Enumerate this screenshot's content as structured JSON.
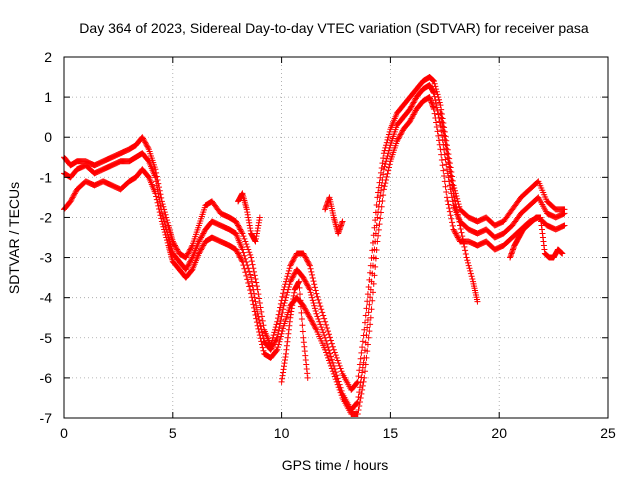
{
  "chart_data": {
    "type": "scatter",
    "title": "Day 364 of 2023, Sidereal Day-to-day VTEC variation (SDTVAR) for receiver pasa",
    "xlabel": "GPS time / hours",
    "ylabel": "SDTVAR / TECUs",
    "xlim": [
      0,
      25
    ],
    "ylim": [
      -7,
      2
    ],
    "xticks": [
      0,
      5,
      10,
      15,
      20,
      25
    ],
    "yticks": [
      -7,
      -6,
      -5,
      -4,
      -3,
      -2,
      -1,
      0,
      1,
      2
    ],
    "grid": true,
    "marker": "+",
    "color": "#ff0000",
    "series": [
      {
        "x": [
          0.0,
          0.3,
          0.6,
          1.0,
          1.4,
          1.8,
          2.2,
          2.6,
          3.0,
          3.3,
          3.6,
          3.9,
          4.2,
          4.5,
          4.8,
          5.0,
          5.3,
          5.6,
          5.9,
          6.2,
          6.5,
          6.8,
          7.2,
          7.6,
          7.9,
          8.2,
          8.6,
          8.9,
          9.2,
          9.5,
          9.8,
          10.1,
          10.4,
          10.7,
          11.0,
          11.3,
          11.6,
          12.0,
          12.4,
          12.8,
          13.2,
          13.5,
          13.8,
          14.1,
          14.4,
          14.7,
          15.0,
          15.3,
          15.6,
          15.9,
          16.2,
          16.5,
          16.8,
          17.0,
          17.3,
          17.6,
          17.9,
          18.2,
          18.6,
          19.0,
          19.4,
          19.8,
          20.2,
          20.6,
          21.0,
          21.4,
          21.8,
          22.2,
          22.6,
          23.0
        ],
        "y": [
          -0.5,
          -0.7,
          -0.6,
          -0.6,
          -0.7,
          -0.6,
          -0.5,
          -0.4,
          -0.3,
          -0.2,
          0.0,
          -0.3,
          -0.8,
          -1.6,
          -2.2,
          -2.6,
          -2.9,
          -3.0,
          -2.7,
          -2.2,
          -1.7,
          -1.6,
          -1.9,
          -2.0,
          -2.1,
          -2.4,
          -3.0,
          -3.8,
          -4.8,
          -5.2,
          -4.6,
          -3.8,
          -3.2,
          -2.9,
          -2.9,
          -3.2,
          -3.9,
          -4.6,
          -5.3,
          -5.9,
          -6.3,
          -6.1,
          -4.8,
          -3.2,
          -1.5,
          -0.4,
          0.2,
          0.6,
          0.8,
          1.0,
          1.2,
          1.4,
          1.5,
          1.4,
          0.8,
          -0.2,
          -1.2,
          -1.8,
          -2.0,
          -2.1,
          -2.0,
          -2.2,
          -2.1,
          -1.8,
          -1.5,
          -1.3,
          -1.1,
          -1.6,
          -1.8,
          -1.8
        ]
      },
      {
        "x": [
          0.0,
          0.3,
          0.6,
          1.0,
          1.4,
          1.8,
          2.2,
          2.6,
          3.0,
          3.3,
          3.6,
          3.9,
          4.2,
          4.5,
          4.8,
          5.0,
          5.3,
          5.6,
          5.9,
          6.2,
          6.5,
          6.8,
          7.2,
          7.6,
          7.9,
          8.2,
          8.6,
          8.9,
          9.2,
          9.5,
          9.8,
          10.1,
          10.4,
          10.7,
          11.0,
          11.3,
          11.6,
          12.0,
          12.4,
          12.8,
          13.2,
          13.5,
          13.8,
          14.1,
          14.4,
          14.7,
          15.0,
          15.3,
          15.6,
          15.9,
          16.2,
          16.5,
          16.8,
          17.0,
          17.3,
          17.6,
          17.9,
          18.2,
          18.6,
          19.0,
          19.4,
          19.8,
          20.2,
          20.6,
          21.0,
          21.4,
          21.8,
          22.2,
          22.6,
          23.0
        ],
        "y": [
          -0.9,
          -1.0,
          -0.8,
          -0.7,
          -0.9,
          -0.8,
          -0.7,
          -0.6,
          -0.6,
          -0.5,
          -0.4,
          -0.6,
          -1.0,
          -1.9,
          -2.5,
          -2.9,
          -3.1,
          -3.3,
          -3.0,
          -2.6,
          -2.3,
          -2.1,
          -2.2,
          -2.3,
          -2.4,
          -2.8,
          -3.5,
          -4.4,
          -5.1,
          -5.3,
          -5.0,
          -4.2,
          -3.6,
          -3.3,
          -3.5,
          -3.8,
          -4.4,
          -5.0,
          -5.7,
          -6.4,
          -6.8,
          -6.6,
          -5.5,
          -3.8,
          -2.0,
          -0.8,
          -0.2,
          0.3,
          0.5,
          0.7,
          1.0,
          1.2,
          1.3,
          1.1,
          0.3,
          -0.8,
          -1.7,
          -2.1,
          -2.3,
          -2.4,
          -2.3,
          -2.5,
          -2.4,
          -2.2,
          -1.9,
          -1.7,
          -1.5,
          -1.9,
          -2.0,
          -1.9
        ]
      },
      {
        "x": [
          0.0,
          0.3,
          0.6,
          1.0,
          1.4,
          1.8,
          2.2,
          2.6,
          3.0,
          3.3,
          3.6,
          3.9,
          4.2,
          4.5,
          4.8,
          5.0,
          5.3,
          5.6,
          5.9,
          6.2,
          6.5,
          6.8,
          7.2,
          7.6,
          7.9,
          8.2,
          8.6,
          8.9,
          9.2,
          9.5,
          9.8,
          10.1,
          10.4,
          10.7,
          11.0,
          11.3,
          11.6,
          12.0,
          12.4,
          12.8,
          13.2,
          13.5,
          13.8,
          14.1,
          14.4,
          14.7,
          15.0,
          15.3,
          15.6,
          15.9,
          16.2,
          16.5,
          16.8,
          17.0,
          17.3,
          17.6,
          17.9,
          18.2,
          18.6,
          19.0,
          19.4,
          19.8,
          20.2,
          20.6,
          21.0,
          21.4,
          21.8,
          22.2,
          22.6,
          23.0
        ],
        "y": [
          -1.8,
          -1.6,
          -1.3,
          -1.1,
          -1.2,
          -1.1,
          -1.2,
          -1.3,
          -1.1,
          -1.0,
          -0.8,
          -1.0,
          -1.4,
          -2.1,
          -2.7,
          -3.1,
          -3.3,
          -3.5,
          -3.3,
          -2.9,
          -2.6,
          -2.5,
          -2.6,
          -2.7,
          -2.8,
          -3.1,
          -3.9,
          -4.7,
          -5.4,
          -5.5,
          -5.3,
          -4.7,
          -4.2,
          -4.0,
          -4.2,
          -4.5,
          -4.8,
          -5.3,
          -5.9,
          -6.5,
          -6.9,
          -6.9,
          -6.0,
          -4.5,
          -2.6,
          -1.3,
          -0.6,
          -0.1,
          0.2,
          0.4,
          0.7,
          0.9,
          1.0,
          0.7,
          -0.3,
          -1.5,
          -2.3,
          -2.6,
          -2.6,
          -2.7,
          -2.6,
          -2.8,
          -2.7,
          -2.5,
          -2.3,
          -2.1,
          -2.0,
          -2.2,
          -2.3,
          -2.2
        ]
      },
      {
        "x": [
          17.3,
          17.6,
          17.9,
          18.2,
          18.5,
          18.8,
          19.0,
          20.5,
          20.7,
          20.9,
          21.1,
          21.3,
          21.5,
          21.7,
          21.9,
          22.1,
          22.3,
          22.5,
          22.7,
          22.9
        ],
        "y": [
          0.6,
          -0.4,
          -1.4,
          -2.2,
          -3.0,
          -3.6,
          -4.1,
          -3.0,
          -2.7,
          -2.5,
          -2.3,
          -2.2,
          -2.1,
          -2.0,
          -2.0,
          -2.9,
          -3.0,
          -3.0,
          -2.8,
          -2.9
        ]
      },
      {
        "x": [
          8.0,
          8.2,
          8.4,
          8.6,
          8.8,
          9.0,
          10.0,
          10.2,
          10.4,
          10.6,
          10.8,
          11.0,
          11.2,
          12.0,
          12.2,
          12.4,
          12.6,
          12.8
        ],
        "y": [
          -1.6,
          -1.4,
          -1.8,
          -2.4,
          -2.6,
          -2.0,
          -6.1,
          -5.4,
          -4.5,
          -3.8,
          -3.6,
          -5.0,
          -6.0,
          -1.8,
          -1.5,
          -2.0,
          -2.4,
          -2.1
        ]
      }
    ]
  }
}
